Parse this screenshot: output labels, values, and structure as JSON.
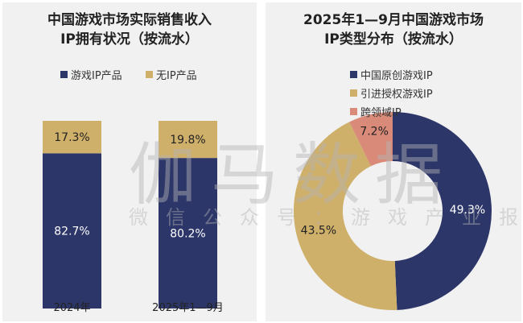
{
  "colors": {
    "navy": "#2c3668",
    "gold": "#cfb06a",
    "coral": "#d98a78"
  },
  "watermark": {
    "main": "伽马数据",
    "sub": "微信公众号：游戏产业报告"
  },
  "chart_data": [
    {
      "type": "bar",
      "stacked": true,
      "title": "中国游戏市场实际销售收入\nIP拥有状况（按流水）",
      "title_lines": [
        "中国游戏市场实际销售收入",
        "IP拥有状况（按流水）"
      ],
      "categories": [
        "2024年",
        "2025年1—9月"
      ],
      "series": [
        {
          "name": "游戏IP产品",
          "values": [
            82.7,
            80.2
          ],
          "labels": [
            "82.7%",
            "80.2%"
          ],
          "color": "#2c3668"
        },
        {
          "name": "无IP产品",
          "values": [
            17.3,
            19.8
          ],
          "labels": [
            "17.3%",
            "19.8%"
          ],
          "color": "#cfb06a"
        }
      ],
      "ylim": [
        0,
        100
      ],
      "legend": "top"
    },
    {
      "type": "pie",
      "donut": true,
      "title_lines": [
        "2025年1—9月中国游戏市场",
        "IP类型分布（按流水）"
      ],
      "slices": [
        {
          "name": "中国原创游戏IP",
          "value": 49.3,
          "label": "49.3%",
          "color": "#2c3668"
        },
        {
          "name": "引进授权游戏IP",
          "value": 43.5,
          "label": "43.5%",
          "color": "#cfb06a"
        },
        {
          "name": "跨领域IP",
          "value": 7.2,
          "label": "7.2%",
          "color": "#d98a78"
        }
      ],
      "legend": "top"
    }
  ]
}
